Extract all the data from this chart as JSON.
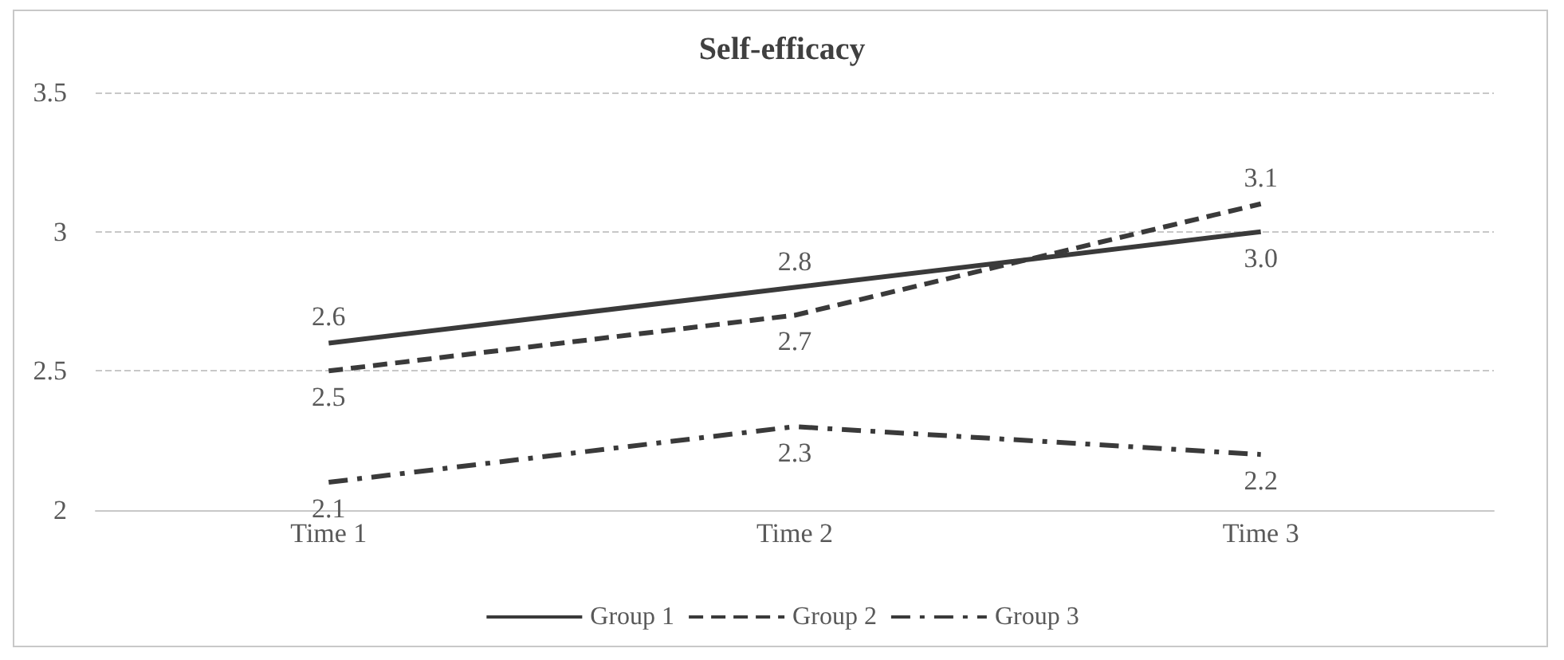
{
  "chart_data": {
    "type": "line",
    "title": "Self-efficacy",
    "categories": [
      "Time 1",
      "Time 2",
      "Time 3"
    ],
    "series": [
      {
        "name": "Group 1",
        "color": "#3a3a3a",
        "line_style": "solid",
        "values": [
          2.6,
          2.8,
          3.0
        ],
        "value_labels": [
          "2.6",
          "2.8",
          "3.0"
        ]
      },
      {
        "name": "Group 2",
        "color": "#3a3a3a",
        "line_style": "dashed",
        "values": [
          2.5,
          2.7,
          3.1
        ],
        "value_labels": [
          "2.5",
          "2.7",
          "3.1"
        ]
      },
      {
        "name": "Group 3",
        "color": "#3a3a3a",
        "line_style": "dashdot",
        "values": [
          2.1,
          2.3,
          2.2
        ],
        "value_labels": [
          "2.1",
          "2.3",
          "2.2"
        ]
      }
    ],
    "ylim": [
      2,
      3.5
    ],
    "yticks": [
      2,
      2.5,
      3,
      3.5
    ],
    "grid": "y",
    "legend": "bottom",
    "marker": "none"
  }
}
